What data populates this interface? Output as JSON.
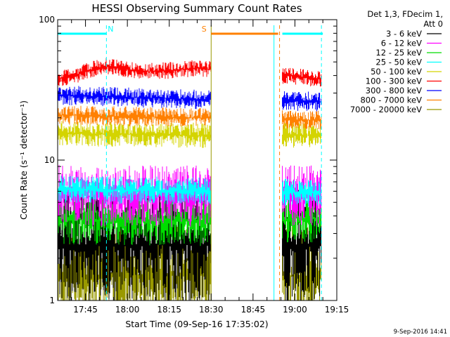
{
  "chart_data": {
    "type": "line",
    "title": "HESSI Observing Summary Count Rates",
    "xlabel": "Start Time (09-Sep-16 17:35:02)",
    "ylabel": "Count Rate (s⁻¹ detector⁻¹)",
    "y_scale": "log",
    "ylim": [
      1,
      100
    ],
    "xlim": [
      "17:35:02",
      "19:15:00"
    ],
    "x_ticks": [
      "17:45",
      "18:00",
      "18:15",
      "18:30",
      "18:45",
      "19:00",
      "19:15"
    ],
    "y_ticks": [
      "1",
      "10",
      "100"
    ],
    "legend_header": [
      "Det 1,3, FDecim 1,",
      "Att 0"
    ],
    "legend_position": "right",
    "series": [
      {
        "name": "3 - 6 keV",
        "color": "#000000",
        "levels": [
          2.5,
          2.5,
          2.5
        ]
      },
      {
        "name": "6 - 12 keV",
        "color": "#ff00ff",
        "levels": [
          5.6,
          5.5,
          5.6
        ]
      },
      {
        "name": "12 - 25 keV",
        "color": "#00dd00",
        "levels": [
          3.8,
          3.7,
          3.9
        ]
      },
      {
        "name": "25 - 50 keV",
        "color": "#00ffff",
        "levels": [
          6.2,
          6.0,
          5.8
        ]
      },
      {
        "name": "50 - 100 keV",
        "color": "#d4d400",
        "levels": [
          15.5,
          15.0,
          15.0
        ]
      },
      {
        "name": "100 - 300 keV",
        "color": "#ff0000",
        "levels": [
          38,
          45,
          37
        ]
      },
      {
        "name": "300 - 800 keV",
        "color": "#0000ff",
        "levels": [
          29,
          27,
          26
        ]
      },
      {
        "name": "800 - 7000 keV",
        "color": "#ff8000",
        "levels": [
          21,
          20,
          19
        ]
      },
      {
        "name": "7000 - 20000 keV",
        "color": "#999900",
        "levels": [
          1.5,
          1.5,
          1.5
        ]
      }
    ],
    "flags": [
      {
        "label": "N",
        "color": "#00ffff",
        "start": "17:35:02",
        "end": "17:52:30"
      },
      {
        "label": "S",
        "color": "#ff8000",
        "start": "18:30:00",
        "end": "18:54:00"
      },
      {
        "label": "",
        "color": "#00ffff",
        "start": "18:55:30",
        "end": "19:10:00"
      }
    ],
    "vertical_lines": [
      {
        "time": "17:52:30",
        "color": "#00ffff",
        "style": "dashed"
      },
      {
        "time": "18:30:00",
        "color": "#999900",
        "style": "solid"
      },
      {
        "time": "18:52:30",
        "color": "#00ffff",
        "style": "solid"
      },
      {
        "time": "18:54:30",
        "color": "#ff8000",
        "style": "dashed"
      },
      {
        "time": "19:09:30",
        "color": "#00ffff",
        "style": "dashed"
      }
    ],
    "data_gaps": [
      [
        "18:30:00",
        "18:55:30"
      ]
    ],
    "footer_date": "9-Sep-2016 14:41"
  }
}
